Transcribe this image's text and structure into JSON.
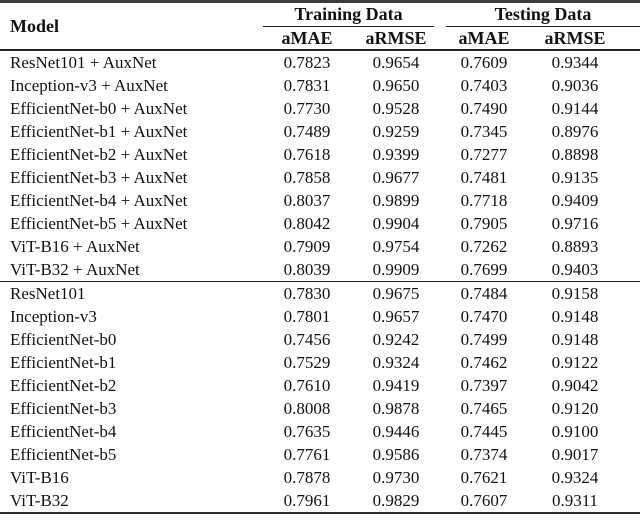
{
  "table": {
    "model_header": "Model",
    "groups": [
      {
        "label": "Training Data"
      },
      {
        "label": "Testing Data"
      }
    ],
    "subheaders": [
      "aMAE",
      "aRMSE",
      "aMAE",
      "aRMSE"
    ],
    "text_color": "#121212",
    "rule_color": "#2b2b2b",
    "sections": [
      {
        "name": "with-auxnet",
        "rows": [
          {
            "model": "ResNet101 + AuxNet",
            "values": [
              "0.7823",
              "0.9654",
              "0.7609",
              "0.9344"
            ]
          },
          {
            "model": "Inception-v3 + AuxNet",
            "values": [
              "0.7831",
              "0.9650",
              "0.7403",
              "0.9036"
            ]
          },
          {
            "model": "EfficientNet-b0 + AuxNet",
            "values": [
              "0.7730",
              "0.9528",
              "0.7490",
              "0.9144"
            ]
          },
          {
            "model": "EfficientNet-b1 + AuxNet",
            "values": [
              "0.7489",
              "0.9259",
              "0.7345",
              "0.8976"
            ]
          },
          {
            "model": "EfficientNet-b2 + AuxNet",
            "values": [
              "0.7618",
              "0.9399",
              "0.7277",
              "0.8898"
            ]
          },
          {
            "model": "EfficientNet-b3 + AuxNet",
            "values": [
              "0.7858",
              "0.9677",
              "0.7481",
              "0.9135"
            ]
          },
          {
            "model": "EfficientNet-b4 + AuxNet",
            "values": [
              "0.8037",
              "0.9899",
              "0.7718",
              "0.9409"
            ]
          },
          {
            "model": "EfficientNet-b5 + AuxNet",
            "values": [
              "0.8042",
              "0.9904",
              "0.7905",
              "0.9716"
            ]
          },
          {
            "model": "ViT-B16 + AuxNet",
            "values": [
              "0.7909",
              "0.9754",
              "0.7262",
              "0.8893"
            ]
          },
          {
            "model": "ViT-B32 + AuxNet",
            "values": [
              "0.8039",
              "0.9909",
              "0.7699",
              "0.9403"
            ]
          }
        ]
      },
      {
        "name": "baseline",
        "rows": [
          {
            "model": "ResNet101",
            "values": [
              "0.7830",
              "0.9675",
              "0.7484",
              "0.9158"
            ]
          },
          {
            "model": "Inception-v3",
            "values": [
              "0.7801",
              "0.9657",
              "0.7470",
              "0.9148"
            ]
          },
          {
            "model": "EfficientNet-b0",
            "values": [
              "0.7456",
              "0.9242",
              "0.7499",
              "0.9148"
            ]
          },
          {
            "model": "EfficientNet-b1",
            "values": [
              "0.7529",
              "0.9324",
              "0.7462",
              "0.9122"
            ]
          },
          {
            "model": "EfficientNet-b2",
            "values": [
              "0.7610",
              "0.9419",
              "0.7397",
              "0.9042"
            ]
          },
          {
            "model": "EfficientNet-b3",
            "values": [
              "0.8008",
              "0.9878",
              "0.7465",
              "0.9120"
            ]
          },
          {
            "model": "EfficientNet-b4",
            "values": [
              "0.7635",
              "0.9446",
              "0.7445",
              "0.9100"
            ]
          },
          {
            "model": "EfficientNet-b5",
            "values": [
              "0.7761",
              "0.9586",
              "0.7374",
              "0.9017"
            ]
          },
          {
            "model": "ViT-B16",
            "values": [
              "0.7878",
              "0.9730",
              "0.7621",
              "0.9324"
            ]
          },
          {
            "model": "ViT-B32",
            "values": [
              "0.7961",
              "0.9829",
              "0.7607",
              "0.9311"
            ]
          }
        ]
      }
    ]
  }
}
